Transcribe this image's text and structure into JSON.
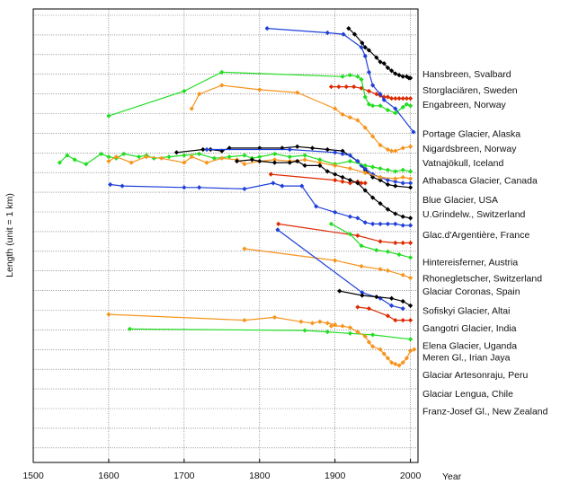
{
  "chart_data": {
    "type": "line",
    "title": "",
    "xlabel": "Year",
    "ylabel": "Length (unit = 1 km)",
    "xlim": [
      1500,
      2010
    ],
    "x_ticks": [
      1500,
      1600,
      1700,
      1800,
      1900,
      2000
    ],
    "grid": true,
    "legend": "none",
    "series": [
      {
        "name": "Hansbreen, Svalbard",
        "color": "#000000",
        "x": [
          1918,
          1926,
          1936,
          1940,
          1945,
          1955,
          1960,
          1965,
          1970,
          1975,
          1980,
          1985,
          1990,
          1995,
          1998,
          2000
        ],
        "y": [
          5.55,
          5.35,
          5.05,
          4.9,
          4.8,
          4.55,
          4.4,
          4.35,
          4.2,
          4.1,
          4.0,
          3.95,
          3.9,
          3.9,
          3.85,
          3.85
        ]
      },
      {
        "name": "Storglaciären, Sweden",
        "color": "#dd2a00",
        "x": [
          1895,
          1905,
          1915,
          1925,
          1935,
          1945,
          1955,
          1960,
          1965,
          1970,
          1975,
          1980,
          1985,
          1990,
          1995,
          2000
        ],
        "y": [
          3.55,
          3.55,
          3.55,
          3.55,
          3.5,
          3.4,
          3.3,
          3.25,
          3.2,
          3.2,
          3.15,
          3.15,
          3.15,
          3.15,
          3.15,
          3.15
        ]
      },
      {
        "name": "Engabreen, Norway",
        "color": "#22dd22",
        "x": [
          1600,
          1700,
          1750,
          1910,
          1920,
          1930,
          1935,
          1940,
          1945,
          1950,
          1960,
          1970,
          1980,
          1990,
          1995,
          2000
        ],
        "y": [
          2.55,
          3.4,
          4.05,
          3.9,
          3.95,
          3.9,
          3.8,
          3.2,
          2.95,
          2.9,
          2.9,
          2.75,
          2.65,
          2.85,
          2.95,
          2.9
        ]
      },
      {
        "name": "Portage Glacier, Alaska",
        "color": "#1f3fd8",
        "x": [
          1810,
          1890,
          1911,
          1935,
          1940,
          1945,
          1950,
          1960,
          1965,
          1980,
          2004
        ],
        "y": [
          5.55,
          5.4,
          5.35,
          4.9,
          4.6,
          4.05,
          3.6,
          3.3,
          3.1,
          2.8,
          2.0
        ]
      },
      {
        "name": "Nigardsbreen, Norway",
        "color": "#f7941d",
        "x": [
          1710,
          1720,
          1750,
          1800,
          1850,
          1900,
          1910,
          1920,
          1930,
          1940,
          1950,
          1960,
          1970,
          1975,
          1980,
          1990,
          2000
        ],
        "y": [
          2.8,
          3.3,
          3.6,
          3.45,
          3.35,
          2.8,
          2.6,
          2.5,
          2.4,
          2.15,
          1.85,
          1.55,
          1.4,
          1.35,
          1.35,
          1.45,
          1.5
        ]
      },
      {
        "name": "Vatnajökull, Iceland",
        "color": "#000000",
        "x": [
          1690,
          1725,
          1735,
          1750,
          1760,
          1800,
          1830,
          1850,
          1870,
          1890,
          1910,
          1930,
          1940,
          1950,
          1960,
          1970,
          1980,
          2000
        ],
        "y": [
          1.3,
          1.4,
          1.4,
          1.35,
          1.45,
          1.45,
          1.45,
          1.5,
          1.45,
          1.4,
          1.35,
          1.0,
          0.7,
          0.45,
          0.35,
          0.2,
          0.15,
          0.1
        ]
      },
      {
        "name": "Athabasca Glacier, Canada",
        "color": "#1f3fd8",
        "x": [
          1730,
          1840,
          1900,
          1910,
          1920,
          1930,
          1935,
          1940,
          1950,
          1960,
          1970,
          1980,
          1990,
          2000
        ],
        "y": [
          1.4,
          1.4,
          1.3,
          1.25,
          1.2,
          1.0,
          0.85,
          0.75,
          0.55,
          0.45,
          0.35,
          0.3,
          0.25,
          0.25
        ]
      },
      {
        "name": "Blue Glacier, USA",
        "color": "#dd2a00",
        "x": [
          1815,
          1900,
          1910,
          1920,
          1930,
          1935,
          1940
        ],
        "y": [
          0.55,
          0.35,
          0.3,
          0.25,
          0.3,
          0.25,
          0.25
        ]
      },
      {
        "name": "U.Grindelw., Switzerland",
        "color": "#22dd22",
        "x": [
          1535,
          1545,
          1555,
          1570,
          1590,
          1600,
          1610,
          1620,
          1640,
          1650,
          1660,
          1680,
          1700,
          1720,
          1740,
          1760,
          1780,
          1790,
          1800,
          1820,
          1840,
          1860,
          1880,
          1900,
          1920,
          1940,
          1950,
          1960,
          1970,
          1980,
          1990,
          2000
        ],
        "y": [
          0.95,
          1.2,
          1.05,
          0.9,
          1.25,
          1.15,
          1.1,
          1.25,
          1.15,
          1.2,
          1.1,
          1.15,
          1.2,
          1.25,
          1.1,
          1.15,
          1.2,
          1.1,
          1.15,
          1.25,
          1.15,
          1.2,
          1.05,
          0.9,
          1.0,
          0.85,
          0.8,
          0.75,
          0.7,
          0.65,
          0.7,
          0.65
        ]
      },
      {
        "name": "Glac.d'Argentière, France",
        "color": "#f7941d",
        "x": [
          1600,
          1610,
          1630,
          1650,
          1670,
          1700,
          1710,
          1730,
          1750,
          1770,
          1780,
          1800,
          1820,
          1840,
          1860,
          1880,
          1900,
          1920,
          1940,
          1960,
          1980,
          1990,
          2000
        ],
        "y": [
          1.0,
          1.15,
          0.95,
          1.15,
          1.1,
          0.95,
          1.15,
          0.95,
          1.1,
          1.05,
          0.9,
          1.0,
          1.05,
          1.0,
          1.05,
          0.95,
          0.85,
          0.75,
          0.6,
          0.45,
          0.4,
          0.45,
          0.4
        ]
      },
      {
        "name": "Hintereisferner, Austria",
        "color": "#000000",
        "x": [
          1770,
          1790,
          1800,
          1820,
          1840,
          1850,
          1860,
          1880,
          1890,
          1900,
          1910,
          1920,
          1930,
          1940,
          1950,
          1960,
          1970,
          1980,
          1990,
          2000
        ],
        "y": [
          1.0,
          1.05,
          1.0,
          0.95,
          0.95,
          1.0,
          0.85,
          0.85,
          0.65,
          0.55,
          0.45,
          0.35,
          0.25,
          0.0,
          -0.25,
          -0.45,
          -0.65,
          -0.8,
          -0.9,
          -0.95
        ]
      },
      {
        "name": "Rhonegletscher, Switzerland",
        "color": "#1f3fd8",
        "x": [
          1602,
          1618,
          1700,
          1720,
          1780,
          1818,
          1830,
          1856,
          1875,
          1900,
          1920,
          1930,
          1940,
          1950,
          1960,
          1970,
          1980,
          1990,
          2000
        ],
        "y": [
          0.2,
          0.15,
          0.1,
          0.1,
          0.05,
          0.25,
          0.15,
          0.15,
          -0.55,
          -0.75,
          -0.9,
          -0.95,
          -1.1,
          -1.15,
          -1.15,
          -1.15,
          -1.15,
          -1.2,
          -1.2
        ]
      },
      {
        "name": "Glaciar Coronas, Spain",
        "color": "#dd2a00",
        "x": [
          1825,
          1930,
          1960,
          1980,
          1990,
          2000
        ],
        "y": [
          -1.15,
          -1.55,
          -1.75,
          -1.8,
          -1.8,
          -1.8
        ]
      },
      {
        "name": "Sofiskyi Glacier, Altai",
        "color": "#22dd22",
        "x": [
          1895,
          1920,
          1935,
          1955,
          1970,
          1985,
          2000
        ],
        "y": [
          -1.15,
          -1.5,
          -1.9,
          -2.05,
          -2.1,
          -2.2,
          -2.3
        ]
      },
      {
        "name": "Gangotri Glacier, India",
        "color": "#f7941d",
        "x": [
          1780,
          1900,
          1935,
          1960,
          1970,
          1990,
          2000
        ],
        "y": [
          -2.0,
          -2.4,
          -2.6,
          -2.7,
          -2.75,
          -2.9,
          -3.0
        ]
      },
      {
        "name": "Elena Glacier,  Uganda",
        "color": "#1f3fd8",
        "x": [
          1824,
          1936,
          1960,
          1975,
          1990
        ],
        "y": [
          -1.35,
          -3.5,
          -3.7,
          -3.95,
          -4.05
        ]
      },
      {
        "name": "Meren Gl.,  Irian Jaya",
        "color": "#000000",
        "x": [
          1906,
          1936,
          1955,
          1975,
          1990,
          2000
        ],
        "y": [
          -3.45,
          -3.6,
          -3.65,
          -3.7,
          -3.8,
          -3.95
        ]
      },
      {
        "name": "Glaciar Artesonraju, Peru",
        "color": "#dd2a00",
        "x": [
          1930,
          1945,
          1970,
          1980,
          1990,
          2000
        ],
        "y": [
          -4.0,
          -4.05,
          -4.3,
          -4.45,
          -4.45,
          -4.45
        ]
      },
      {
        "name": "Glaciar Lengua, Chile",
        "color": "#f7941d",
        "x": [
          1600,
          1780,
          1820,
          1855,
          1870,
          1880,
          1890,
          1900
        ],
        "y": [
          -4.25,
          -4.45,
          -4.35,
          -4.5,
          -4.55,
          -4.5,
          -4.55,
          -4.6
        ]
      },
      {
        "name": "Franz-Josef Gl., New Zealand",
        "color": "#22dd22",
        "x": [
          1628,
          1860,
          1890,
          1920,
          1950,
          2000
        ],
        "y": [
          -4.75,
          -4.8,
          -4.85,
          -4.9,
          -4.95,
          -5.1
        ]
      },
      {
        "name": "",
        "color": "#f7941d",
        "x": [
          1895,
          1910,
          1920,
          1930,
          1940,
          1945,
          1950,
          1960,
          1965,
          1970,
          1975,
          1980,
          1985,
          1990,
          1995,
          2000,
          2005
        ],
        "y": [
          -4.65,
          -4.65,
          -4.7,
          -4.85,
          -5.0,
          -5.2,
          -5.35,
          -5.45,
          -5.6,
          -5.75,
          -5.9,
          -5.95,
          -6.0,
          -5.9,
          -5.75,
          -5.5,
          -5.45
        ]
      }
    ],
    "labels": [
      {
        "text": "Hansbreen, Svalbard",
        "y": 4.0
      },
      {
        "text": "Storglaciären, Sweden",
        "y": 3.45
      },
      {
        "text": "Engabreen, Norway",
        "y": 2.95
      },
      {
        "text": "Portage Glacier, Alaska",
        "y": 1.95
      },
      {
        "text": "Nigardsbreen, Norway",
        "y": 1.45
      },
      {
        "text": "Vatnajökull, Iceland",
        "y": 0.95
      },
      {
        "text": "Athabasca Glacier, Canada",
        "y": 0.35
      },
      {
        "text": "Blue Glacier, USA",
        "y": -0.3
      },
      {
        "text": "U.Grindelw., Switzerland",
        "y": -0.8
      },
      {
        "text": "Glac.d'Argentière, France",
        "y": -1.5
      },
      {
        "text": "Hintereisferner, Austria",
        "y": -2.45
      },
      {
        "text": "Rhonegletscher, Switzerland",
        "y": -3.0
      },
      {
        "text": "Glaciar Coronas, Spain",
        "y": -3.45
      },
      {
        "text": "Sofiskyi Glacier, Altai",
        "y": -4.1
      },
      {
        "text": "Gangotri Glacier, India",
        "y": -4.7
      },
      {
        "text": "Elena Glacier,  Uganda",
        "y": -5.3
      },
      {
        "text": "Meren Gl.,  Irian Jaya",
        "y": -5.7
      },
      {
        "text": "Glaciar Artesonraju, Peru",
        "y": -6.3
      },
      {
        "text": "Glaciar Lengua, Chile",
        "y": -6.95
      },
      {
        "text": "Franz-Josef Gl., New Zealand",
        "y": -7.55
      }
    ]
  }
}
